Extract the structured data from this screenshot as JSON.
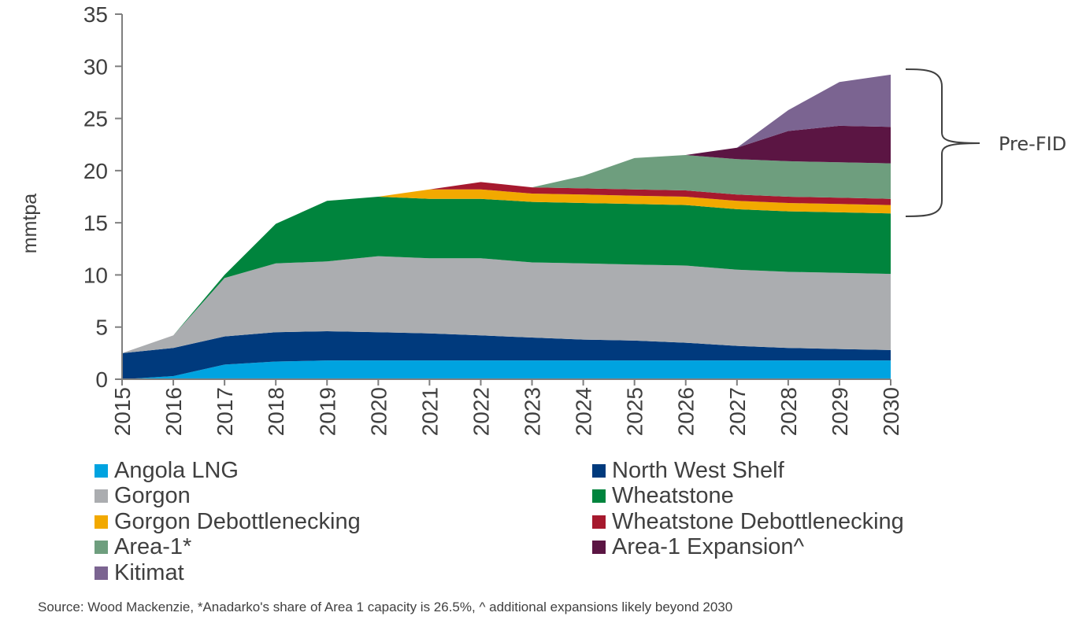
{
  "chart_data": {
    "type": "area",
    "stacked": true,
    "ylabel": "mmtpa",
    "xlabel": "",
    "ylim": [
      0,
      35
    ],
    "yticks": [
      0,
      5,
      10,
      15,
      20,
      25,
      30,
      35
    ],
    "categories": [
      "2015",
      "2016",
      "2017",
      "2018",
      "2019",
      "2020",
      "2021",
      "2022",
      "2023",
      "2024",
      "2025",
      "2026",
      "2027",
      "2028",
      "2029",
      "2030"
    ],
    "series": [
      {
        "name": "Angola LNG",
        "color": "#00A3E0",
        "values": [
          0.0,
          0.3,
          1.4,
          1.7,
          1.8,
          1.8,
          1.8,
          1.8,
          1.8,
          1.8,
          1.8,
          1.8,
          1.8,
          1.8,
          1.8,
          1.8
        ]
      },
      {
        "name": "North West Shelf",
        "color": "#003A7D",
        "values": [
          2.5,
          2.7,
          2.7,
          2.8,
          2.8,
          2.7,
          2.6,
          2.4,
          2.2,
          2.0,
          1.9,
          1.7,
          1.4,
          1.2,
          1.1,
          1.0
        ]
      },
      {
        "name": "Gorgon",
        "color": "#ABADB0",
        "values": [
          0.0,
          1.2,
          5.6,
          6.6,
          6.7,
          7.3,
          7.2,
          7.4,
          7.2,
          7.3,
          7.3,
          7.4,
          7.3,
          7.3,
          7.3,
          7.3
        ]
      },
      {
        "name": "Wheatstone",
        "color": "#00843D",
        "values": [
          0.0,
          0.0,
          0.3,
          3.8,
          5.8,
          5.7,
          5.7,
          5.7,
          5.8,
          5.8,
          5.8,
          5.8,
          5.8,
          5.8,
          5.8,
          5.8
        ]
      },
      {
        "name": "Gorgon Debottlenecking",
        "color": "#F2A900",
        "values": [
          0.0,
          0.0,
          0.0,
          0.0,
          0.0,
          0.0,
          0.9,
          0.9,
          0.8,
          0.8,
          0.8,
          0.8,
          0.8,
          0.8,
          0.8,
          0.8
        ]
      },
      {
        "name": "Wheatstone Debottlenecking",
        "color": "#A6192E",
        "values": [
          0.0,
          0.0,
          0.0,
          0.0,
          0.0,
          0.0,
          0.0,
          0.7,
          0.6,
          0.6,
          0.6,
          0.6,
          0.6,
          0.6,
          0.6,
          0.6
        ]
      },
      {
        "name": "Area-1*",
        "color": "#6E9E7E",
        "values": [
          0.0,
          0.0,
          0.0,
          0.0,
          0.0,
          0.0,
          0.0,
          0.0,
          0.0,
          1.2,
          3.0,
          3.4,
          3.4,
          3.4,
          3.4,
          3.4
        ]
      },
      {
        "name": "Area-1 Expansion^",
        "color": "#5B1543",
        "values": [
          0.0,
          0.0,
          0.0,
          0.0,
          0.0,
          0.0,
          0.0,
          0.0,
          0.0,
          0.0,
          0.0,
          0.0,
          1.1,
          2.9,
          3.5,
          3.5
        ]
      },
      {
        "name": "Kitimat",
        "color": "#7B6491",
        "values": [
          0.0,
          0.0,
          0.0,
          0.0,
          0.0,
          0.0,
          0.0,
          0.0,
          0.0,
          0.0,
          0.0,
          0.0,
          0.0,
          2.0,
          4.2,
          5.0
        ]
      }
    ],
    "legend_position": "bottom",
    "legend_order": [
      "Angola LNG",
      "North West Shelf",
      "Gorgon",
      "Wheatstone",
      "Gorgon Debottlenecking",
      "Wheatstone Debottlenecking",
      "Area-1*",
      "Area-1 Expansion^",
      "Kitimat"
    ],
    "annotation": {
      "text": "Pre-FID",
      "y_from": 15.5,
      "y_to": 29.5
    },
    "grid": false
  },
  "source_note": "Source: Wood Mackenzie, *Anadarko's share of Area 1 capacity is 26.5%, ^ additional expansions likely beyond 2030",
  "colors": {
    "axis": "#7F7F7F",
    "text": "#404040"
  }
}
